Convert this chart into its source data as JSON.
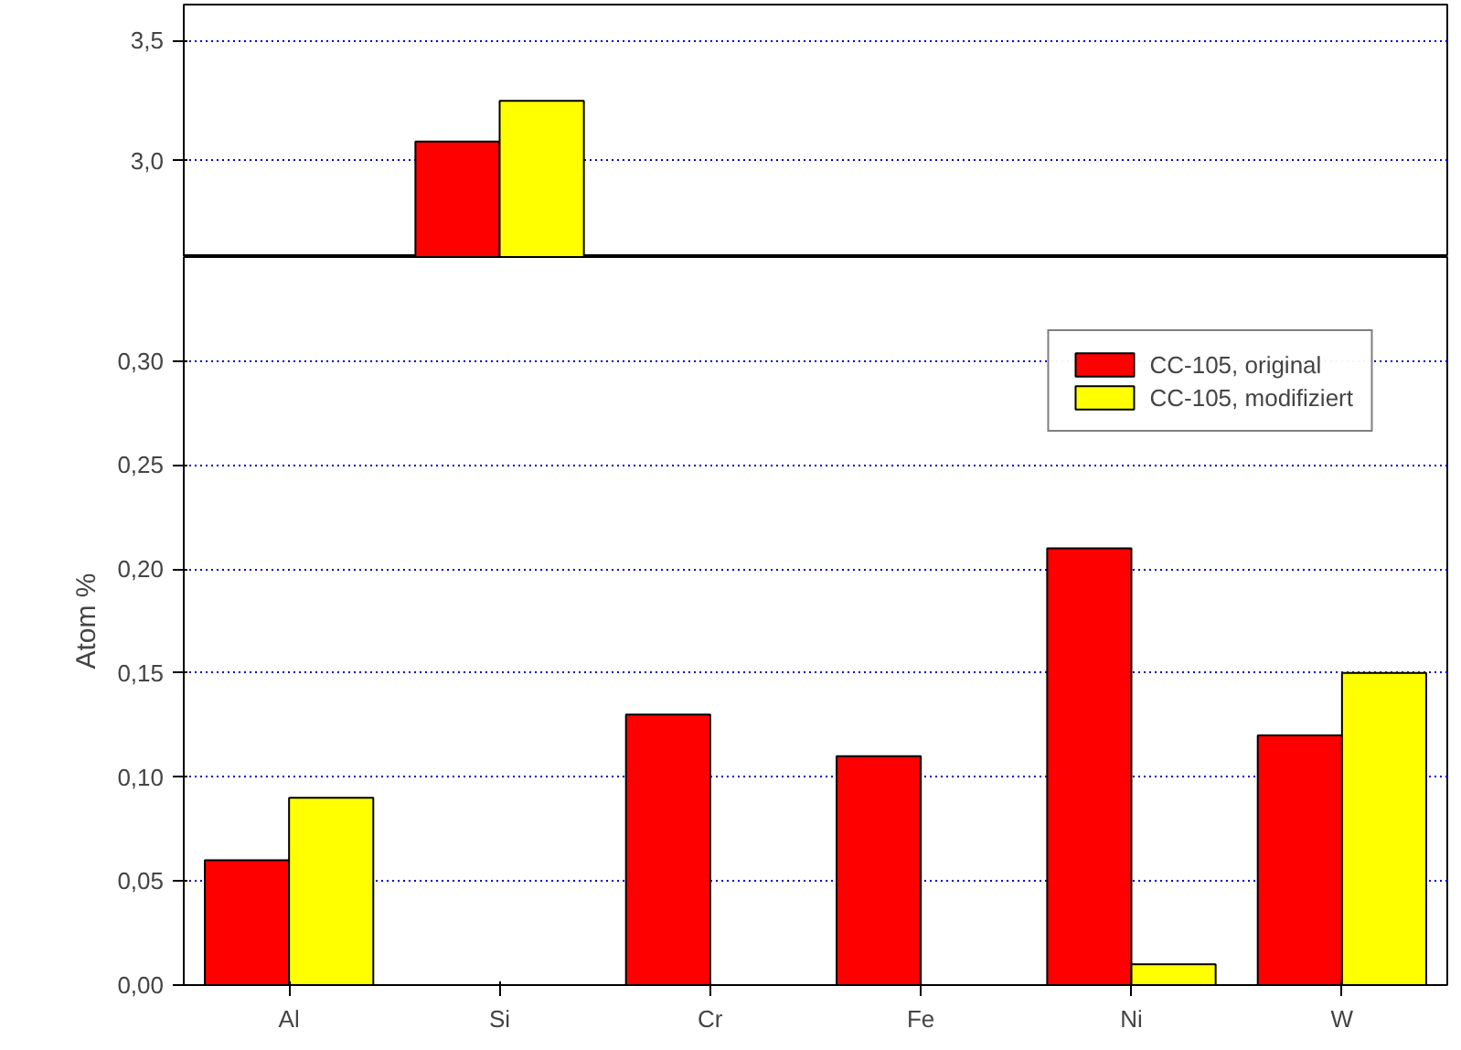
{
  "chart_data": [
    {
      "type": "bar",
      "categories": [
        null,
        null,
        null,
        null,
        null,
        null
      ],
      "series": [
        {
          "color": "#ff0000",
          "values": [
            null,
            3.08,
            null,
            null,
            null,
            null
          ]
        },
        {
          "color": "#ffff00",
          "values": [
            null,
            3.25,
            null,
            null,
            null,
            null
          ]
        }
      ],
      "ylim": [
        2.6,
        3.65
      ],
      "yticks": [
        {
          "value": 3.0,
          "label": "3,0"
        },
        {
          "value": 3.5,
          "label": "3,5"
        }
      ],
      "grid": "y",
      "tick_labels": "y"
    },
    {
      "type": "bar",
      "categories": [
        "Al",
        "Si",
        "Cr",
        "Fe",
        "Ni",
        "W"
      ],
      "ylabel": "Atom %",
      "series": [
        {
          "name": "CC-105, original",
          "color": "#ff0000",
          "values": [
            0.06,
            null,
            0.13,
            0.11,
            0.21,
            0.12
          ]
        },
        {
          "name": "CC-105, modifiziert",
          "color": "#ffff00",
          "values": [
            0.09,
            null,
            null,
            null,
            0.01,
            0.15
          ]
        }
      ],
      "ylim": [
        0,
        0.35
      ],
      "yticks": [
        {
          "value": 0,
          "label": "0,00"
        },
        {
          "value": 0.05,
          "label": "0,05"
        },
        {
          "value": 0.1,
          "label": "0,10"
        },
        {
          "value": 0.15,
          "label": "0,15"
        },
        {
          "value": 0.2,
          "label": "0,20"
        },
        {
          "value": 0.25,
          "label": "0,25"
        },
        {
          "value": 0.3,
          "label": "0,30"
        }
      ],
      "grid": "y",
      "legend": "top right"
    }
  ]
}
